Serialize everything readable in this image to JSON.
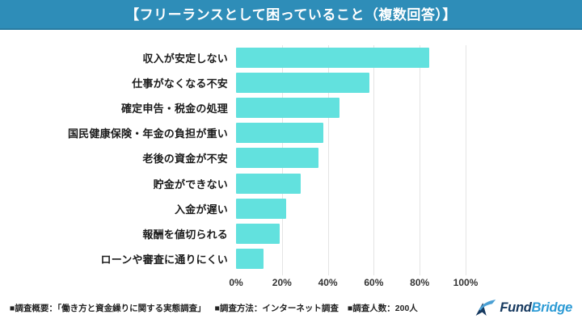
{
  "header": {
    "title": "【フリーランスとして困っていること（複数回答）】",
    "bg_color": "#2e8db8",
    "text_color": "#ffffff"
  },
  "chart_data": {
    "type": "bar",
    "orientation": "horizontal",
    "title": "フリーランスとして困っていること（複数回答）",
    "categories": [
      "収入が安定しない",
      "仕事がなくなる不安",
      "確定申告・税金の処理",
      "国民健康保険・年金の負担が重い",
      "老後の資金が不安",
      "貯金ができない",
      "入金が遅い",
      "報酬を値切られる",
      "ローンや審査に通りにくい"
    ],
    "values": [
      84,
      58,
      45,
      38,
      36,
      28,
      22,
      19,
      12
    ],
    "unit": "%",
    "xlim": [
      0,
      100
    ],
    "x_ticks": [
      "0%",
      "20%",
      "40%",
      "60%",
      "80%",
      "100%"
    ],
    "x_tick_values": [
      0,
      20,
      40,
      60,
      80,
      100
    ],
    "bar_color": "#62e1de",
    "gridline_color": "#e4e4e4",
    "grid": true,
    "legend": false
  },
  "footer": {
    "survey_overview": "■調査概要：「働き方と資金繰りに関する実態調査」",
    "survey_method": "■調査方法：インターネット調査",
    "survey_count": "■調査人数：200人",
    "logo": {
      "text_primary": "Fund",
      "text_secondary": "Bridge",
      "primary_color": "#16395f",
      "secondary_color": "#2d9bd5",
      "mark": "swoosh-mountain"
    }
  }
}
